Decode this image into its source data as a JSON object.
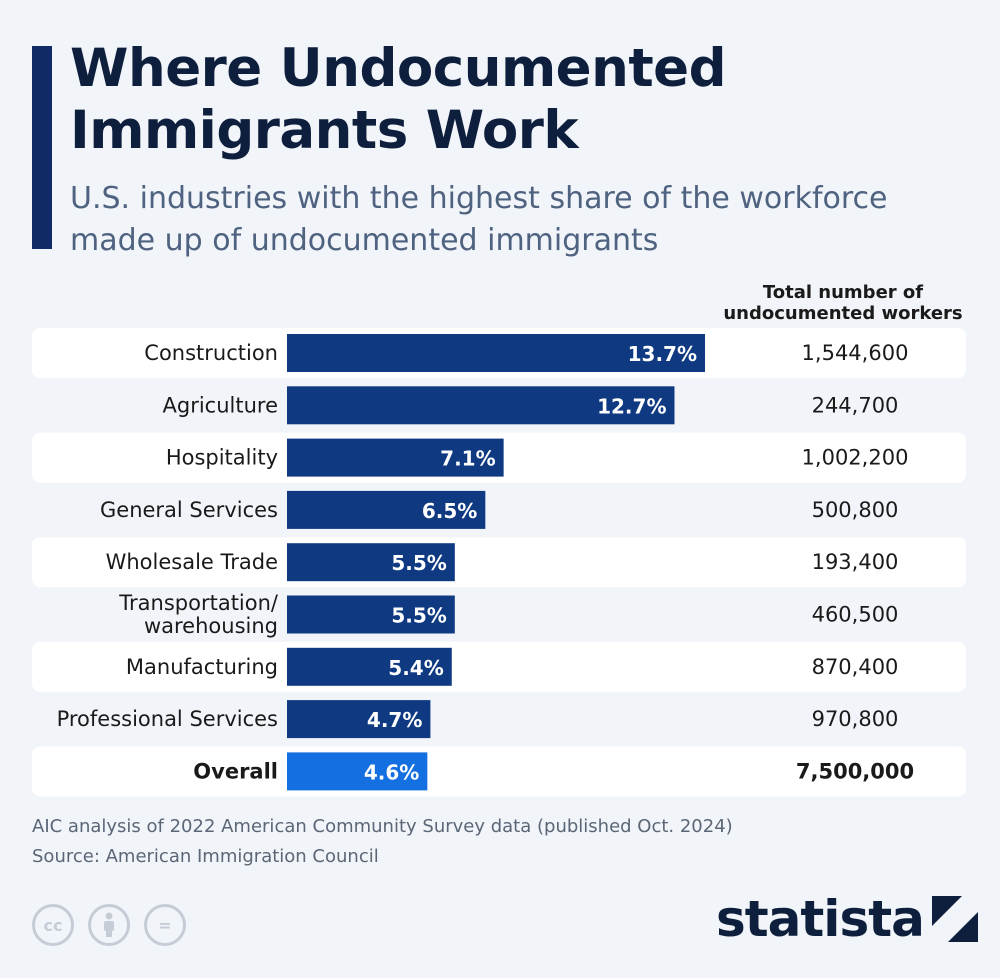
{
  "header": {
    "title": "Where Undocumented\nImmigrants Work",
    "subtitle": "U.S. industries with the highest share of the workforce\nmade up of undocumented immigrants",
    "column_header": "Total number of\nundocumented workers"
  },
  "chart_data": {
    "type": "bar",
    "orientation": "horizontal",
    "title": "Where Undocumented Immigrants Work",
    "subtitle": "U.S. industries with the highest share of the workforce made up of undocumented immigrants",
    "categories": [
      "Construction",
      "Agriculture",
      "Hospitality",
      "General Services",
      "Wholesale Trade",
      "Transportation/\nwarehousing",
      "Manufacturing",
      "Professional Services",
      "Overall"
    ],
    "values": [
      13.7,
      12.7,
      7.1,
      6.5,
      5.5,
      5.5,
      5.4,
      4.7,
      4.6
    ],
    "value_labels": [
      "13.7%",
      "12.7%",
      "7.1%",
      "6.5%",
      "5.5%",
      "5.5%",
      "5.4%",
      "4.7%",
      "4.6%"
    ],
    "unit": "%",
    "table_column": {
      "header": "Total number of undocumented workers",
      "values": [
        "1,544,600",
        "244,700",
        "1,002,200",
        "500,800",
        "193,400",
        "460,500",
        "870,400",
        "970,800",
        "7,500,000"
      ]
    },
    "highlight_index": 8,
    "xlim": [
      0,
      13.7
    ],
    "colors": {
      "bar": "#0f3a82",
      "highlight": "#1470e0",
      "row_band": "#ffffff",
      "label": "#1a1a1a"
    },
    "grid": false,
    "legend": "none"
  },
  "footer": {
    "note": "AIC analysis of 2022 American Community Survey data (published Oct. 2024)",
    "source": "Source: American Immigration Council",
    "license_icons": [
      "cc-icon",
      "attribution-icon",
      "no-derivatives-icon"
    ],
    "license_glyphs": [
      "cc",
      "",
      "="
    ],
    "logo_text": "statista"
  }
}
